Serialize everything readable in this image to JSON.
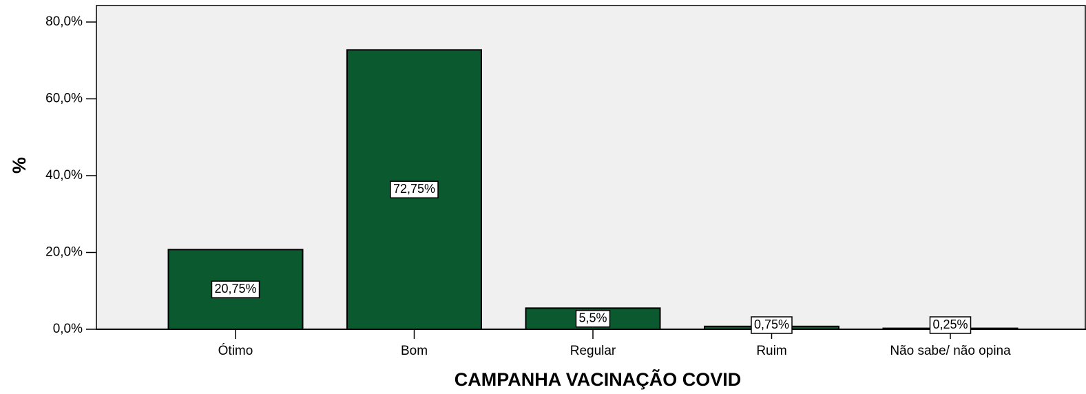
{
  "chart_data": {
    "type": "bar",
    "x_label": "CAMPANHA VACINAÇÃO COVID",
    "y_label": "%",
    "categories": [
      "Ótimo",
      "Bom",
      "Regular",
      "Ruim",
      "Não sabe/ não opina"
    ],
    "values": [
      20.75,
      72.75,
      5.5,
      0.75,
      0.25
    ],
    "value_labels": [
      "20,75%",
      "72,75%",
      "5,5%",
      "0,75%",
      "0,25%"
    ],
    "color": "#0b5a2f",
    "ylim": [
      0,
      84.3
    ],
    "yticks": [
      {
        "value": 0,
        "label": "0,0%"
      },
      {
        "value": 20,
        "label": "20,0%"
      },
      {
        "value": 40,
        "label": "40,0%"
      },
      {
        "value": 60,
        "label": "60,0%"
      },
      {
        "value": 80,
        "label": "80,0%"
      }
    ]
  }
}
